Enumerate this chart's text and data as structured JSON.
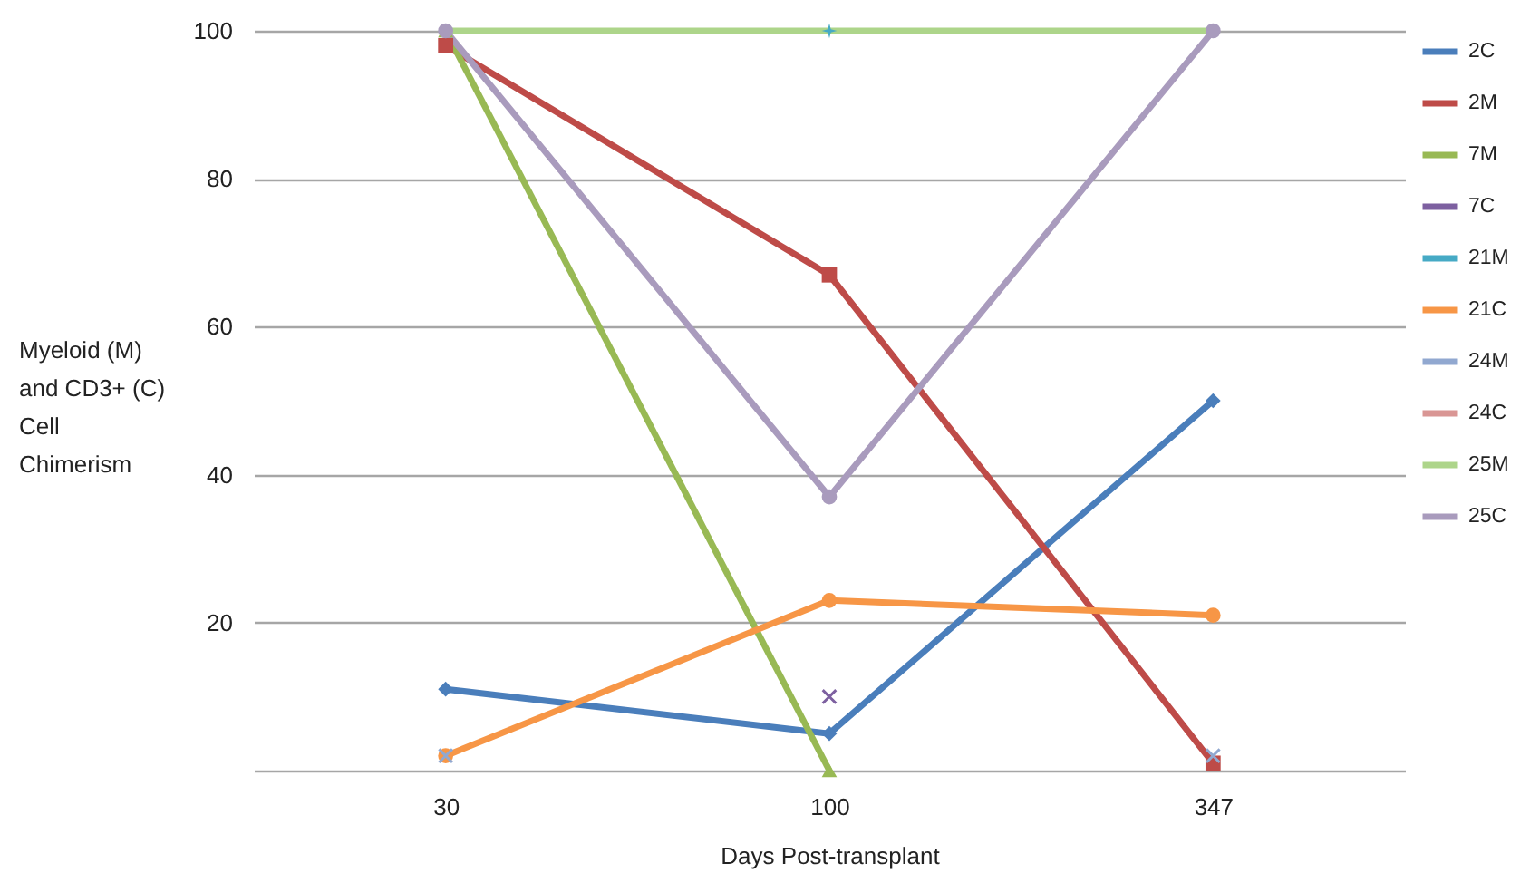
{
  "chart_data": {
    "type": "line",
    "xlabel": "Days Post-transplant",
    "ylabel": "Myeloid (M) and CD3+ (C) Cell Chimerism",
    "categories": [
      "30",
      "100",
      "347"
    ],
    "ylim": [
      0,
      100
    ],
    "yticks": [
      {
        "value": 0,
        "label": null
      },
      20,
      40,
      60,
      80,
      100
    ],
    "grid": "y",
    "legend": "right",
    "series": [
      {
        "name": "2C",
        "color": "#4a7ebb",
        "marker": "diamond",
        "values": [
          11,
          5,
          50
        ]
      },
      {
        "name": "2M",
        "color": "#be4b48",
        "marker": "square",
        "values": [
          98,
          67,
          1
        ]
      },
      {
        "name": "7M",
        "color": "#98b954",
        "marker": "triangle",
        "values": [
          100,
          0,
          null
        ]
      },
      {
        "name": "7C",
        "color": "#7d60a0",
        "marker": "cross",
        "values": [
          null,
          10,
          null
        ]
      },
      {
        "name": "21M",
        "color": "#46aac5",
        "marker": "star",
        "values": [
          null,
          100,
          null
        ]
      },
      {
        "name": "21C",
        "color": "#f79646",
        "marker": "circle",
        "values": [
          2,
          23,
          21
        ]
      },
      {
        "name": "24M",
        "type": "scatter",
        "color": "#91a8d0",
        "marker": "cross",
        "values": [
          2,
          null,
          2
        ]
      },
      {
        "name": "24C",
        "color": "#d99694",
        "marker": "none",
        "values": [
          null,
          null,
          null
        ]
      },
      {
        "name": "25M",
        "color": "#add58a",
        "marker": "none",
        "values": [
          100,
          100,
          100
        ]
      },
      {
        "name": "25C",
        "color": "#a99bbd",
        "marker": "circle",
        "values": [
          100,
          37,
          100
        ]
      }
    ]
  }
}
